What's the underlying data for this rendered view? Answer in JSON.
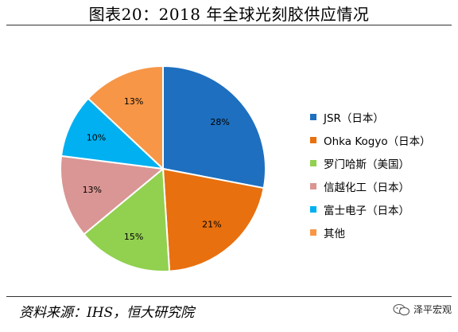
{
  "title": "图表20：2018 年全球光刻胶供应情况",
  "source": "资料来源：IHS，恒大研究院",
  "watermark": "泽平宏观",
  "chart_data": {
    "type": "pie",
    "title": "",
    "legend_position": "right",
    "slices": [
      {
        "name": "JSR（日本）",
        "value": 28,
        "label": "28%",
        "color": "#1E6FBF"
      },
      {
        "name": "Ohka Kogyo（日本）",
        "value": 21,
        "label": "21%",
        "color": "#E8700E"
      },
      {
        "name": "罗门哈斯（美国）",
        "value": 15,
        "label": "15%",
        "color": "#92D050"
      },
      {
        "name": "信越化工（日本）",
        "value": 13,
        "label": "13%",
        "color": "#DA9694"
      },
      {
        "name": "富士电子（日本）",
        "value": 10,
        "label": "10%",
        "color": "#00B0F0"
      },
      {
        "name": "其他",
        "value": 13,
        "label": "13%",
        "color": "#F79646"
      }
    ]
  }
}
